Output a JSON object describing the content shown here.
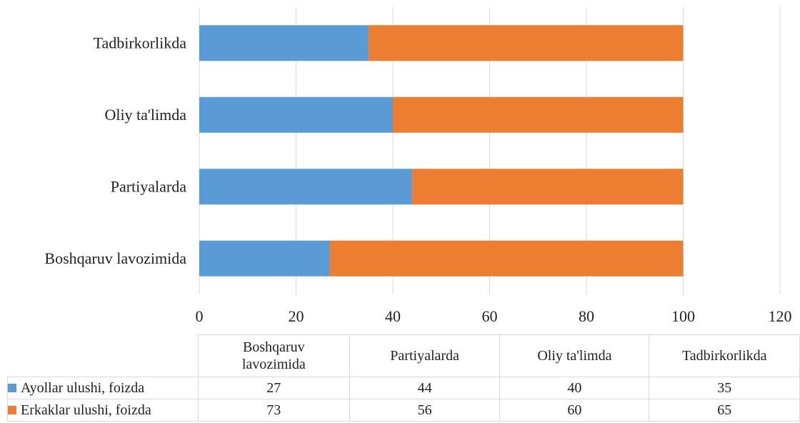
{
  "chart_data": {
    "type": "bar",
    "orientation": "horizontal",
    "stacked": true,
    "title": "",
    "xlabel": "",
    "ylabel": "",
    "xlim": [
      0,
      120
    ],
    "x_ticks": [
      0,
      20,
      40,
      60,
      80,
      100,
      120
    ],
    "grid": true,
    "legend": "data table below chart",
    "categories": [
      "Boshqaruv lavozimida",
      "Partiyalarda",
      "Oliy ta'limda",
      "Tadbirkorlikda"
    ],
    "table_headers": [
      "Boshqaruv\nlavozimida",
      "Partiyalarda",
      "Oliy ta'limda",
      "Tadbirkorlikda"
    ],
    "series": [
      {
        "name": "Ayollar ulushi, foizda",
        "color": "#5b9bd5",
        "values": [
          27,
          44,
          40,
          35
        ]
      },
      {
        "name": "Erkaklar ulushi, foizda",
        "color": "#ed7d31",
        "values": [
          73,
          56,
          60,
          65
        ]
      }
    ]
  }
}
